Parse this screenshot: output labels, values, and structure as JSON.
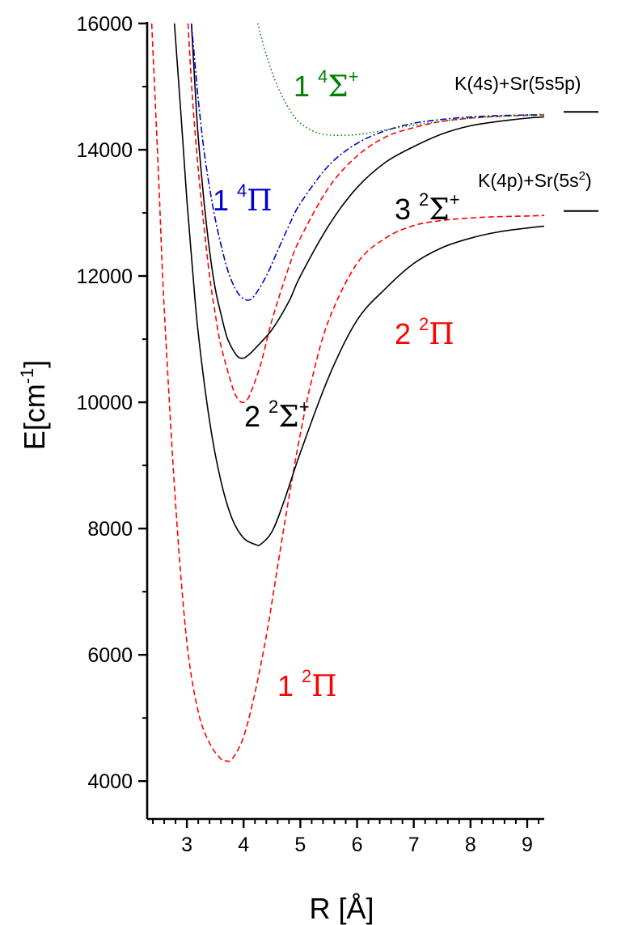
{
  "chart_data": {
    "type": "line",
    "xlabel": "R [Å]",
    "ylabel": {
      "main": "E[cm",
      "exp": "-1",
      "close": "]"
    },
    "xlim": [
      2.3,
      9.3
    ],
    "ylim": [
      3400,
      16000
    ],
    "x_ticks": [
      3,
      4,
      5,
      6,
      7,
      8,
      9
    ],
    "y_ticks": [
      4000,
      6000,
      8000,
      10000,
      12000,
      14000,
      16000
    ],
    "grid": false,
    "legend": "none",
    "series": [
      {
        "label": {
          "n": "1",
          "mult": "2",
          "sym": "Π",
          "plus": ""
        },
        "color": "#ff0000",
        "style": "dashed",
        "x": [
          2.38,
          2.5,
          2.6,
          2.8,
          3.0,
          3.2,
          3.4,
          3.6,
          3.7,
          3.8,
          4.0,
          4.2,
          4.4,
          4.6,
          4.8,
          5.0,
          5.2,
          5.5,
          6.0,
          6.5,
          7.0,
          7.5,
          8.0,
          8.5,
          9.0,
          9.3
        ],
        "y": [
          16000,
          13600,
          11500,
          8400,
          6200,
          5100,
          4600,
          4350,
          4320,
          4350,
          4700,
          5400,
          6300,
          7400,
          8500,
          9500,
          10350,
          11300,
          12200,
          12600,
          12800,
          12880,
          12920,
          12940,
          12950,
          12960
        ]
      },
      {
        "label": {
          "n": "2",
          "mult": "2",
          "sym": "Σ",
          "plus": "+"
        },
        "color": "#000000",
        "style": "solid",
        "x": [
          2.78,
          2.9,
          3.0,
          3.1,
          3.2,
          3.4,
          3.6,
          3.8,
          4.0,
          4.2,
          4.3,
          4.5,
          4.7,
          5.0,
          5.5,
          6.0,
          6.5,
          7.0,
          7.5,
          8.0,
          8.5,
          9.0,
          9.3
        ],
        "y": [
          16000,
          14500,
          13200,
          12100,
          11100,
          9700,
          8750,
          8150,
          7850,
          7750,
          7750,
          7950,
          8400,
          9200,
          10400,
          11300,
          11800,
          12200,
          12450,
          12600,
          12700,
          12760,
          12790
        ]
      },
      {
        "label": {
          "n": "2",
          "mult": "2",
          "sym": "Π",
          "plus": ""
        },
        "color": "#ff0000",
        "style": "dashed",
        "x": [
          3.02,
          3.1,
          3.2,
          3.3,
          3.4,
          3.5,
          3.6,
          3.8,
          3.9,
          4.0,
          4.1,
          4.3,
          4.5,
          4.8,
          5.0,
          5.5,
          6.0,
          6.5,
          7.0,
          7.5,
          8.0,
          8.5,
          9.0,
          9.3
        ],
        "y": [
          16000,
          14800,
          13700,
          12800,
          12000,
          11400,
          10900,
          10250,
          10050,
          10000,
          10100,
          10600,
          11300,
          12150,
          12600,
          13400,
          13900,
          14200,
          14350,
          14450,
          14500,
          14530,
          14545,
          14550
        ]
      },
      {
        "label": {
          "n": "3",
          "mult": "2",
          "sym": "Σ",
          "plus": "+"
        },
        "color": "#000000",
        "style": "solid",
        "x": [
          3.08,
          3.15,
          3.2,
          3.3,
          3.4,
          3.5,
          3.6,
          3.7,
          3.8,
          3.9,
          4.0,
          4.1,
          4.2,
          4.5,
          4.8,
          5.0,
          5.5,
          6.0,
          6.5,
          7.0,
          7.5,
          8.0,
          8.5,
          9.0,
          9.3
        ],
        "y": [
          16000,
          14900,
          14200,
          13200,
          12400,
          11800,
          11400,
          11050,
          10850,
          10720,
          10700,
          10760,
          10850,
          11150,
          11600,
          12000,
          12800,
          13400,
          13800,
          14050,
          14250,
          14380,
          14450,
          14500,
          14520
        ]
      },
      {
        "label": {
          "n": "1",
          "mult": "4",
          "sym": "Π",
          "plus": ""
        },
        "color": "#0000cc",
        "style": "dashdot",
        "x": [
          3.08,
          3.15,
          3.2,
          3.3,
          3.4,
          3.5,
          3.6,
          3.7,
          3.8,
          3.9,
          4.0,
          4.1,
          4.2,
          4.4,
          4.6,
          4.8,
          5.0,
          5.5,
          6.0,
          6.5,
          7.0,
          7.5,
          8.0,
          8.5,
          9.0,
          9.3
        ],
        "y": [
          16000,
          15300,
          14800,
          14000,
          13400,
          12900,
          12500,
          12150,
          11900,
          11730,
          11640,
          11620,
          11700,
          12000,
          12400,
          12800,
          13150,
          13750,
          14100,
          14300,
          14420,
          14480,
          14520,
          14540,
          14550,
          14555
        ]
      },
      {
        "label": {
          "n": "1",
          "mult": "4",
          "sym": "Σ",
          "plus": "+"
        },
        "color": "#008000",
        "style": "dotted",
        "x": [
          4.25,
          4.4,
          4.6,
          4.8,
          5.0,
          5.3,
          5.6,
          6.0,
          6.3,
          6.6,
          7.0,
          7.5,
          8.0,
          8.5,
          9.0,
          9.3
        ],
        "y": [
          16000,
          15500,
          15000,
          14650,
          14420,
          14270,
          14230,
          14240,
          14280,
          14330,
          14390,
          14450,
          14500,
          14530,
          14550,
          14560
        ]
      }
    ],
    "asymptotes": [
      {
        "label": "K(4s)+Sr(5s5p)",
        "energy": 14600
      },
      {
        "label_before": "K(4p)+Sr(5s",
        "label_exp": "2",
        "label_after": ")",
        "energy": 13030
      }
    ],
    "state_labels_text": [
      "1 ⁴Σ⁺",
      "1 ⁴Π",
      "3 ²Σ⁺",
      "2 ²Σ⁺",
      "2 ²Π",
      "1 ²Π"
    ]
  }
}
